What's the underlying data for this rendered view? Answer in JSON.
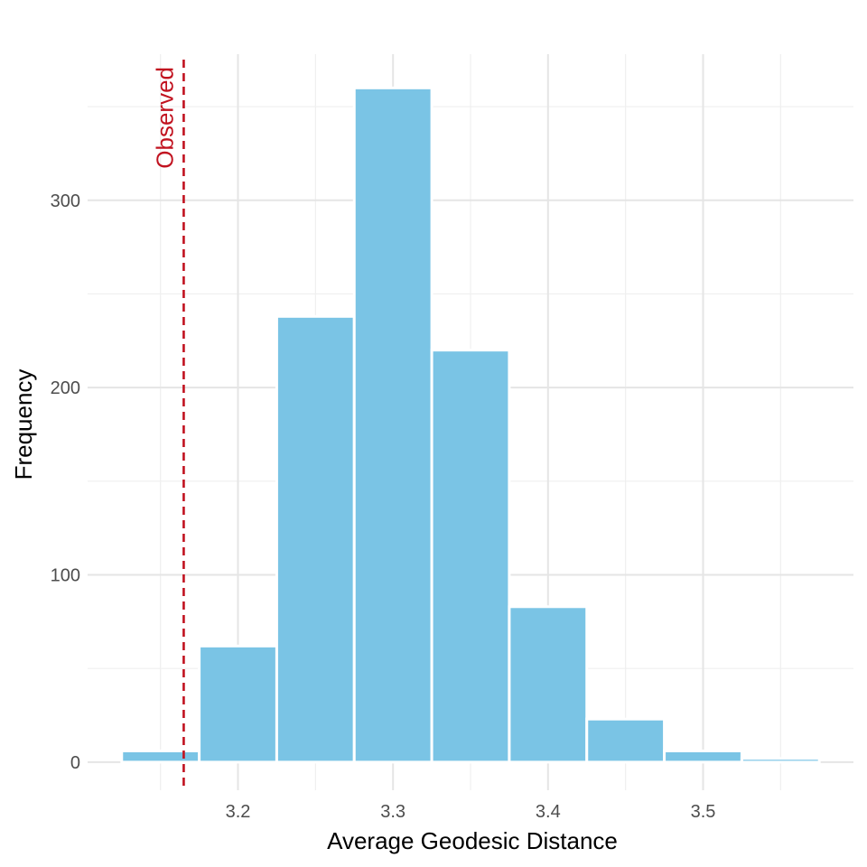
{
  "chart_data": {
    "type": "bar",
    "subtype": "histogram",
    "xlabel": "Average Geodesic Distance",
    "ylabel": "Frequency",
    "bin_width": 0.05,
    "bins": [
      {
        "start": 3.125,
        "end": 3.175,
        "count": 6
      },
      {
        "start": 3.175,
        "end": 3.225,
        "count": 62
      },
      {
        "start": 3.225,
        "end": 3.275,
        "count": 238
      },
      {
        "start": 3.275,
        "end": 3.325,
        "count": 360
      },
      {
        "start": 3.325,
        "end": 3.375,
        "count": 220
      },
      {
        "start": 3.375,
        "end": 3.425,
        "count": 83
      },
      {
        "start": 3.425,
        "end": 3.475,
        "count": 23
      },
      {
        "start": 3.475,
        "end": 3.525,
        "count": 6
      },
      {
        "start": 3.525,
        "end": 3.575,
        "count": 2
      }
    ],
    "xlim": [
      3.103,
      3.597
    ],
    "ylim": [
      -15,
      378
    ],
    "x_ticks": [
      3.2,
      3.3,
      3.4,
      3.5
    ],
    "x_tick_labels": [
      "3.2",
      "3.3",
      "3.4",
      "3.5"
    ],
    "y_ticks": [
      0,
      100,
      200,
      300
    ],
    "y_tick_labels": [
      "0",
      "100",
      "200",
      "300"
    ],
    "grid": true,
    "reference_line": {
      "x": 3.165,
      "label": "Observed",
      "color": "#c1121f",
      "style": "dashed"
    },
    "bar_color": "#7ac4e5"
  }
}
